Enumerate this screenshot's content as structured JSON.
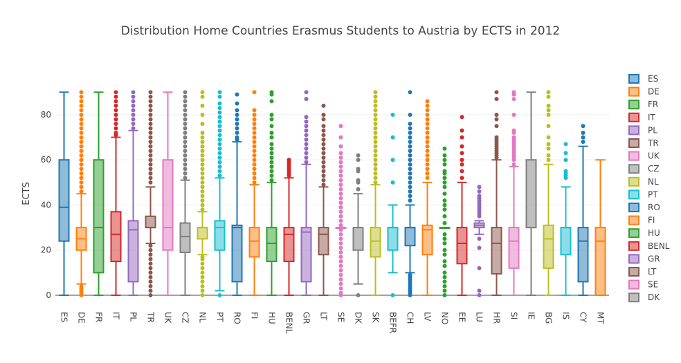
{
  "chart_data": {
    "type": "box",
    "title": "Distribution Home Countries Erasmus Students to Austria by ECTS in 2012",
    "xlabel": "",
    "ylabel": "ECTS",
    "ylim": [
      0,
      95
    ],
    "yticks": [
      0,
      20,
      40,
      60,
      80
    ],
    "grid": true,
    "legend_position": "right",
    "categories": [
      "ES",
      "DE",
      "FR",
      "IT",
      "PL",
      "TR",
      "UK",
      "CZ",
      "NL",
      "PT",
      "RO",
      "FI",
      "HU",
      "BENL",
      "GR",
      "LT",
      "SE",
      "DK",
      "SK",
      "BEFR",
      "CH",
      "LV",
      "NO",
      "EE",
      "LU",
      "HR",
      "SI",
      "IE",
      "BG",
      "IS",
      "CY",
      "MT"
    ],
    "legend": [
      "ES",
      "DE",
      "FR",
      "IT",
      "PL",
      "TR",
      "UK",
      "CZ",
      "NL",
      "PT",
      "RO",
      "FI",
      "HU",
      "BENL",
      "GR",
      "LT",
      "SE",
      "DK"
    ],
    "palette": [
      "#1f77b4",
      "#ff7f0e",
      "#2ca02c",
      "#d62728",
      "#9467bd",
      "#8c564b",
      "#e377c2",
      "#7f7f7f",
      "#bcbd22",
      "#17becf"
    ],
    "series": [
      {
        "name": "ES",
        "q1": 24,
        "median": 39,
        "q3": 60,
        "lower": 0,
        "upper": 90,
        "outliers": []
      },
      {
        "name": "DE",
        "q1": 20,
        "median": 25,
        "q3": 30,
        "lower": 5,
        "upper": 45,
        "outliers": [
          0,
          1,
          2,
          3,
          4,
          46,
          48,
          50,
          52,
          54,
          56,
          58,
          60,
          62,
          64,
          66,
          68,
          70,
          72,
          74,
          76,
          78,
          80,
          82,
          84,
          86,
          88,
          90
        ]
      },
      {
        "name": "FR",
        "q1": 10,
        "median": 30,
        "q3": 60,
        "lower": 0,
        "upper": 90,
        "outliers": []
      },
      {
        "name": "IT",
        "q1": 15,
        "median": 27,
        "q3": 37,
        "lower": 0,
        "upper": 70,
        "outliers": [
          71,
          72,
          74,
          76,
          78,
          80,
          82,
          84,
          86,
          88,
          90
        ]
      },
      {
        "name": "PL",
        "q1": 6,
        "median": 29,
        "q3": 33,
        "lower": 0,
        "upper": 73,
        "outliers": [
          74,
          76,
          78,
          80,
          82,
          84,
          86,
          88,
          90
        ]
      },
      {
        "name": "TR",
        "q1": 30,
        "median": 30,
        "q3": 35,
        "lower": 23,
        "upper": 48,
        "outliers": [
          0,
          2,
          4,
          6,
          8,
          10,
          12,
          14,
          16,
          18,
          20,
          22,
          50,
          52,
          54,
          56,
          58,
          60,
          62,
          64,
          66,
          68,
          70,
          72,
          74,
          76,
          78,
          80,
          82,
          84,
          86,
          88,
          90
        ]
      },
      {
        "name": "UK",
        "q1": 20,
        "median": 30,
        "q3": 60,
        "lower": 0,
        "upper": 90,
        "outliers": []
      },
      {
        "name": "CZ",
        "q1": 19,
        "median": 26,
        "q3": 32,
        "lower": 0,
        "upper": 51,
        "outliers": [
          52,
          54,
          56,
          58,
          60,
          62,
          64,
          66,
          68,
          70,
          72,
          74,
          76,
          78,
          80,
          82,
          84,
          86,
          88,
          90
        ]
      },
      {
        "name": "NL",
        "q1": 25,
        "median": 30,
        "q3": 30,
        "lower": 18,
        "upper": 37,
        "outliers": [
          0,
          2,
          4,
          6,
          8,
          10,
          12,
          14,
          16,
          17,
          38,
          40,
          42,
          44,
          46,
          48,
          50,
          52,
          54,
          56,
          58,
          60,
          62,
          64,
          66,
          68,
          70,
          72,
          76,
          80,
          84,
          88,
          90
        ]
      },
      {
        "name": "PT",
        "q1": 20,
        "median": 30,
        "q3": 33,
        "lower": 2,
        "upper": 52,
        "outliers": [
          0,
          53,
          55,
          57,
          59,
          61,
          63,
          65,
          67,
          69,
          71,
          73,
          75,
          77,
          79,
          81,
          83,
          85,
          88,
          90
        ]
      },
      {
        "name": "RO",
        "q1": 6,
        "median": 30,
        "q3": 31,
        "lower": 0,
        "upper": 68,
        "outliers": [
          69,
          70,
          72,
          74,
          76,
          78,
          80,
          82,
          85,
          89
        ]
      },
      {
        "name": "FI",
        "q1": 17,
        "median": 24,
        "q3": 30,
        "lower": 0,
        "upper": 49,
        "outliers": [
          50,
          52,
          54,
          56,
          58,
          60,
          62,
          64,
          66,
          68,
          70,
          72,
          74,
          76,
          78,
          80,
          82,
          90
        ]
      },
      {
        "name": "HU",
        "q1": 15,
        "median": 23,
        "q3": 30,
        "lower": 0,
        "upper": 50,
        "outliers": [
          51,
          53,
          55,
          57,
          59,
          61,
          63,
          65,
          67,
          70,
          72,
          75,
          78,
          80,
          86,
          89,
          90
        ]
      },
      {
        "name": "BENL",
        "q1": 15,
        "median": 27,
        "q3": 30,
        "lower": 0,
        "upper": 52,
        "outliers": [
          53,
          54,
          55,
          56,
          57,
          58,
          59,
          60
        ]
      },
      {
        "name": "GR",
        "q1": 6,
        "median": 28,
        "q3": 30,
        "lower": 0,
        "upper": 58,
        "outliers": [
          59,
          61,
          63,
          65,
          67,
          69,
          71,
          73,
          75,
          77,
          79,
          87,
          90
        ]
      },
      {
        "name": "LT",
        "q1": 18,
        "median": 27,
        "q3": 30,
        "lower": 0,
        "upper": 48,
        "outliers": [
          49,
          51,
          53,
          55,
          57,
          59,
          61,
          63,
          65,
          67,
          69,
          71,
          73,
          75,
          78,
          80,
          84
        ]
      },
      {
        "name": "SE",
        "q1": 30,
        "median": 30,
        "q3": 30,
        "lower": 30,
        "upper": 30,
        "outliers": [
          0,
          1,
          3,
          5,
          7,
          9,
          11,
          13,
          15,
          17,
          19,
          21,
          23,
          25,
          27,
          29,
          31,
          33,
          35,
          37,
          39,
          41,
          43,
          45,
          47,
          49,
          51,
          53,
          55,
          57,
          59,
          61,
          63,
          66,
          70,
          75
        ]
      },
      {
        "name": "DK",
        "q1": 20,
        "median": 30,
        "q3": 30,
        "lower": 5,
        "upper": 45,
        "outliers": [
          0,
          47,
          50,
          51,
          55,
          56,
          60,
          62
        ]
      },
      {
        "name": "SK",
        "q1": 17,
        "median": 24,
        "q3": 30,
        "lower": 0,
        "upper": 49,
        "outliers": [
          50,
          52,
          54,
          56,
          58,
          60,
          62,
          64,
          66,
          68,
          70,
          72,
          74,
          76,
          78,
          80,
          82,
          84,
          86,
          88,
          90
        ]
      },
      {
        "name": "BEFR",
        "q1": 20,
        "median": 30,
        "q3": 30,
        "lower": 10,
        "upper": 40,
        "outliers": [
          0,
          50,
          60,
          70,
          80
        ]
      },
      {
        "name": "CH",
        "q1": 22,
        "median": 30,
        "q3": 30,
        "lower": 10,
        "upper": 40,
        "outliers": [
          0,
          1,
          2,
          3,
          4,
          5,
          6,
          7,
          8,
          9,
          42,
          44,
          46,
          48,
          50,
          52,
          54,
          56,
          58,
          60,
          62,
          64,
          66,
          68,
          70,
          72,
          74,
          76,
          80,
          90
        ]
      },
      {
        "name": "LV",
        "q1": 18,
        "median": 29,
        "q3": 31,
        "lower": 0,
        "upper": 50,
        "outliers": [
          52,
          54,
          56,
          58,
          60,
          62,
          64,
          66,
          68,
          70,
          72,
          74,
          76,
          78,
          80,
          82,
          84,
          86
        ]
      },
      {
        "name": "NO",
        "q1": 30,
        "median": 30,
        "q3": 30,
        "lower": 30,
        "upper": 30,
        "outliers": [
          0,
          2,
          4,
          6,
          8,
          10,
          13,
          15,
          18,
          20,
          23,
          25,
          27,
          32,
          35,
          38,
          40,
          42,
          45,
          48,
          50,
          52,
          54,
          55,
          58,
          60,
          62,
          65
        ]
      },
      {
        "name": "EE",
        "q1": 14,
        "median": 23,
        "q3": 30,
        "lower": 0,
        "upper": 50,
        "outliers": [
          52,
          55,
          58,
          60,
          63,
          66,
          70,
          73,
          79
        ]
      },
      {
        "name": "LU",
        "q1": 30,
        "median": 31,
        "q3": 32,
        "lower": 27,
        "upper": 33,
        "outliers": [
          0,
          2,
          12,
          21,
          25,
          35,
          36,
          37,
          38,
          39,
          40,
          41,
          42,
          43,
          44,
          46,
          48
        ]
      },
      {
        "name": "HR",
        "q1": 9.5,
        "median": 23,
        "q3": 30,
        "lower": 0,
        "upper": 60,
        "outliers": [
          61,
          62,
          63,
          64,
          65,
          66,
          67,
          68,
          69,
          70,
          75,
          78,
          80,
          87,
          90
        ]
      },
      {
        "name": "SI",
        "q1": 12,
        "median": 24,
        "q3": 30,
        "lower": 0,
        "upper": 57,
        "outliers": [
          58,
          60,
          61,
          62,
          63,
          64,
          65,
          66,
          67,
          68,
          69,
          70,
          72,
          73,
          80,
          87,
          89,
          90
        ]
      },
      {
        "name": "IE",
        "q1": 30,
        "median": 30,
        "q3": 60,
        "lower": 0,
        "upper": 90,
        "outliers": []
      },
      {
        "name": "BG",
        "q1": 12,
        "median": 25,
        "q3": 31,
        "lower": 0,
        "upper": 58,
        "outliers": [
          60,
          62,
          65,
          67,
          70,
          75,
          80,
          82,
          84,
          88,
          90
        ]
      },
      {
        "name": "IS",
        "q1": 18,
        "median": 30,
        "q3": 30,
        "lower": 0,
        "upper": 48,
        "outliers": [
          52,
          53,
          54,
          55,
          60,
          63,
          67
        ]
      },
      {
        "name": "CY",
        "q1": 6,
        "median": 24,
        "q3": 30,
        "lower": 0,
        "upper": 66,
        "outliers": [
          68,
          70,
          72,
          75
        ]
      },
      {
        "name": "MT",
        "q1": 0,
        "median": 24,
        "q3": 30,
        "lower": 0,
        "upper": 60,
        "outliers": []
      }
    ]
  }
}
